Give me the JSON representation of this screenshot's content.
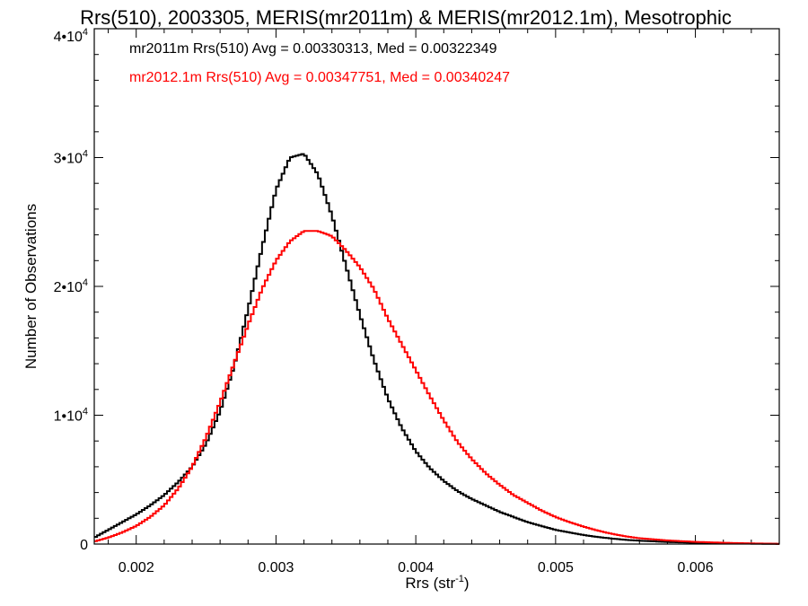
{
  "chart_data": {
    "type": "line",
    "title": "Rrs(510), 2003305, MERIS(mr2011m) & MERIS(mr2012.1m), Mesotrophic",
    "xlabel": "Rrs (str",
    "xlabel_sup": "-1",
    "xlabel_tail": ")",
    "ylabel": "Number of Observations",
    "xlim": [
      0.0017,
      0.0066
    ],
    "ylim": [
      0,
      40000
    ],
    "x_ticks": [
      {
        "value": 0.002,
        "label": "0.002"
      },
      {
        "value": 0.003,
        "label": "0.003"
      },
      {
        "value": 0.004,
        "label": "0.004"
      },
      {
        "value": 0.005,
        "label": "0.005"
      },
      {
        "value": 0.006,
        "label": "0.006"
      }
    ],
    "y_ticks": [
      {
        "value": 0,
        "base": "0",
        "exp": ""
      },
      {
        "value": 10000,
        "base": "1•10",
        "exp": "4"
      },
      {
        "value": 20000,
        "base": "2•10",
        "exp": "4"
      },
      {
        "value": 30000,
        "base": "3•10",
        "exp": "4"
      },
      {
        "value": 40000,
        "base": "4•10",
        "exp": "4"
      }
    ],
    "annotations": [
      {
        "text": "mr2011m Rrs(510) Avg = 0.00330313, Med = 0.00322349",
        "color": "#000000"
      },
      {
        "text": "mr2012.1m Rrs(510) Avg = 0.00347751, Med = 0.00340247",
        "color": "#ff0000"
      }
    ],
    "series": [
      {
        "color": "#000000",
        "x": [
          0.0017,
          0.0018,
          0.0019,
          0.002,
          0.0021,
          0.0022,
          0.0023,
          0.0024,
          0.0025,
          0.0026,
          0.0027,
          0.0028,
          0.0029,
          0.003,
          0.0031,
          0.0032,
          0.0033,
          0.0034,
          0.0035,
          0.0036,
          0.0037,
          0.0038,
          0.0039,
          0.004,
          0.0041,
          0.0042,
          0.0043,
          0.0044,
          0.0045,
          0.0046,
          0.0047,
          0.0048,
          0.0049,
          0.005,
          0.0051,
          0.0052,
          0.0053,
          0.0054,
          0.0055,
          0.0056,
          0.0058,
          0.006,
          0.0062,
          0.0064,
          0.0066
        ],
        "y": [
          500,
          1100,
          1700,
          2300,
          3000,
          3800,
          4800,
          6000,
          7800,
          10300,
          13800,
          18200,
          23000,
          27500,
          30000,
          30300,
          28700,
          25500,
          21600,
          17800,
          14300,
          11300,
          9000,
          7200,
          5900,
          4900,
          4100,
          3500,
          3000,
          2500,
          2100,
          1700,
          1400,
          1100,
          900,
          700,
          550,
          430,
          330,
          260,
          160,
          100,
          60,
          30,
          10
        ]
      },
      {
        "color": "#ff0000",
        "x": [
          0.0017,
          0.0018,
          0.0019,
          0.002,
          0.0021,
          0.0022,
          0.0023,
          0.0024,
          0.0025,
          0.0026,
          0.0027,
          0.0028,
          0.0029,
          0.003,
          0.0031,
          0.0032,
          0.0033,
          0.0034,
          0.0035,
          0.0036,
          0.0037,
          0.0038,
          0.0039,
          0.004,
          0.0041,
          0.0042,
          0.0043,
          0.0044,
          0.0045,
          0.0046,
          0.0047,
          0.0048,
          0.0049,
          0.005,
          0.0051,
          0.0052,
          0.0053,
          0.0054,
          0.0055,
          0.0056,
          0.0058,
          0.006,
          0.0062,
          0.0064,
          0.0066
        ],
        "y": [
          200,
          500,
          900,
          1400,
          2100,
          3000,
          4300,
          6000,
          8300,
          11000,
          14000,
          17000,
          19800,
          22000,
          23500,
          24300,
          24300,
          23900,
          22800,
          21500,
          19800,
          17500,
          15500,
          13500,
          11500,
          9600,
          7900,
          6600,
          5500,
          4600,
          3800,
          3200,
          2600,
          2100,
          1700,
          1350,
          1050,
          800,
          600,
          450,
          280,
          170,
          100,
          50,
          20
        ]
      }
    ]
  }
}
